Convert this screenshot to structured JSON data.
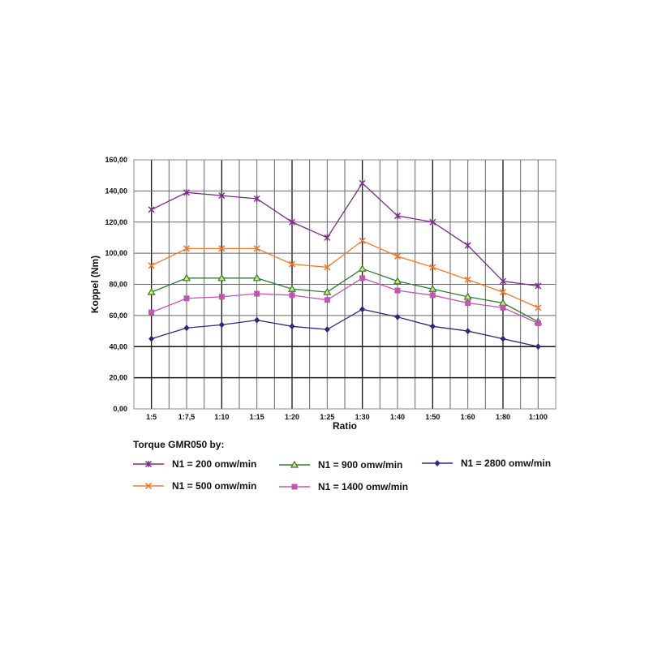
{
  "chart_data": {
    "type": "line",
    "xlabel": "Ratio",
    "ylabel": "Koppel (Nm)",
    "ylim": [
      0,
      160
    ],
    "yticks": [
      "0,00",
      "20,00",
      "40,00",
      "60,00",
      "80,00",
      "100,00",
      "120,00",
      "140,00",
      "160,00"
    ],
    "grid": true,
    "categories": [
      "1:5",
      "1:7,5",
      "1:10",
      "1:15",
      "1:20",
      "1:25",
      "1:30",
      "1:40",
      "1:50",
      "1:60",
      "1:80",
      "1:100"
    ],
    "legend_title": "Torque GMR050 by:",
    "legend_placement": "bottom",
    "series": [
      {
        "name": "N1 = 200 omw/min",
        "color": "#7b2a8a",
        "marker": "asterisk",
        "values": [
          128,
          139,
          137,
          135,
          120,
          110,
          145,
          124,
          120,
          105,
          82,
          79
        ]
      },
      {
        "name": "N1 = 500 omw/min",
        "color": "#f07b2c",
        "marker": "x",
        "values": [
          92,
          103,
          103,
          103,
          93,
          91,
          108,
          98,
          91,
          83,
          75,
          65
        ]
      },
      {
        "name": "N1 = 900 omw/min",
        "color": "#2f7a34",
        "marker": "triangle",
        "values": [
          75,
          84,
          84,
          84,
          77,
          75,
          90,
          82,
          77,
          72,
          68,
          56
        ]
      },
      {
        "name": "N1 = 1400 omw/min",
        "color": "#c056b0",
        "marker": "square",
        "values": [
          62,
          71,
          72,
          74,
          73,
          70,
          84,
          76,
          73,
          68,
          65,
          55
        ]
      },
      {
        "name": "N1 = 2800 omw/min",
        "color": "#2a2a7a",
        "marker": "diamond",
        "values": [
          45,
          52,
          54,
          57,
          53,
          51,
          64,
          59,
          53,
          50,
          45,
          40
        ]
      }
    ]
  }
}
